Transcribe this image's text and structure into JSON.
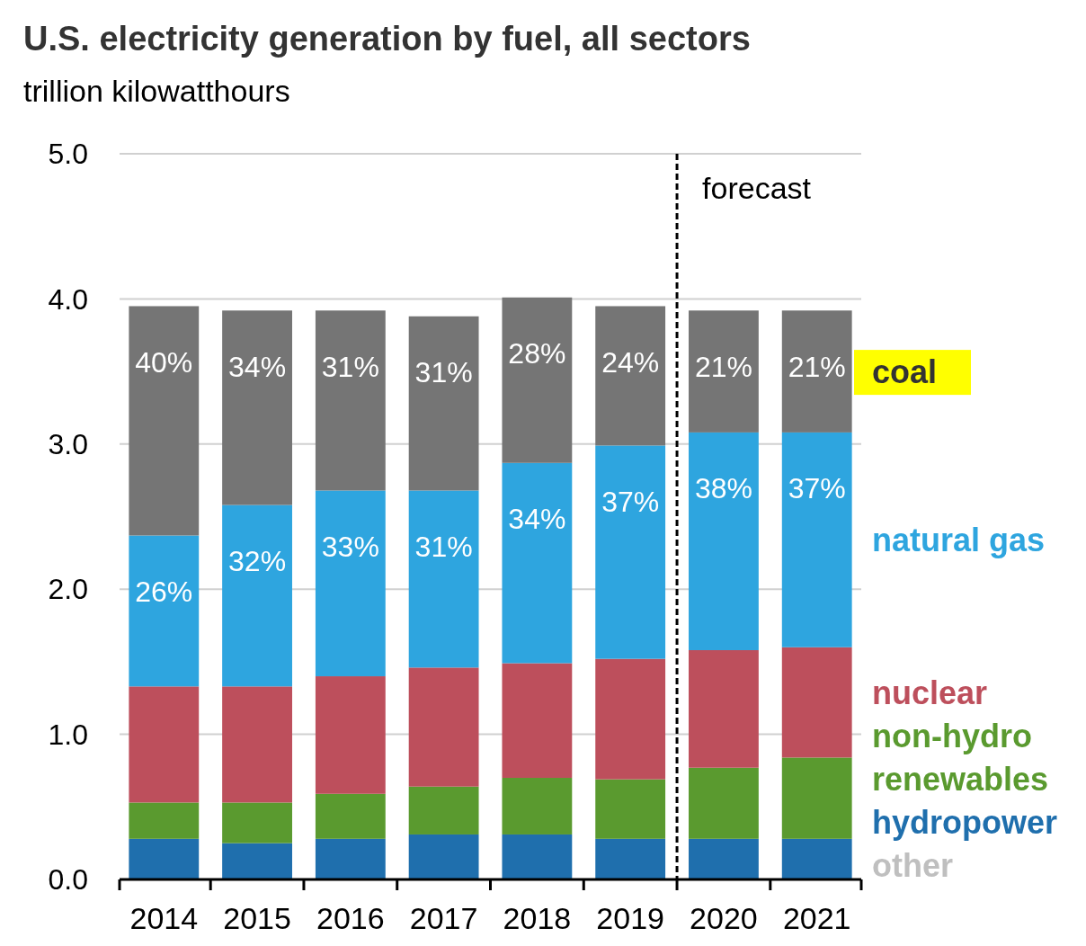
{
  "chart_data": {
    "type": "bar",
    "stacked": true,
    "title": "U.S. electricity generation by fuel, all sectors",
    "subtitle": "trillion kilowatthours",
    "categories": [
      "2014",
      "2015",
      "2016",
      "2017",
      "2018",
      "2019",
      "2020",
      "2021"
    ],
    "ylim": [
      0,
      5
    ],
    "yticks": [
      {
        "value": 0,
        "label": "0.0"
      },
      {
        "value": 1,
        "label": "1.0"
      },
      {
        "value": 2,
        "label": "2.0"
      },
      {
        "value": 3,
        "label": "3.0"
      },
      {
        "value": 4,
        "label": "4.0"
      },
      {
        "value": 5,
        "label": "5.0"
      }
    ],
    "grid": "y",
    "legend": "right",
    "ref_lines": [
      {
        "axis": "x",
        "value": "2020",
        "label": "forecast",
        "line_style": "dashed",
        "color": "#000000"
      }
    ],
    "series": [
      {
        "name": "other",
        "color": "#bfbfbf",
        "values": [
          null,
          null,
          null,
          null,
          null,
          null,
          null,
          null
        ]
      },
      {
        "name": "hydropower",
        "color": "#1f6fad",
        "values": [
          0.28,
          0.25,
          0.28,
          0.31,
          0.31,
          0.28,
          0.28,
          0.28
        ]
      },
      {
        "name": "non-hydro renewables",
        "color": "#5a9a2f",
        "values": [
          0.25,
          0.28,
          0.31,
          0.33,
          0.39,
          0.41,
          0.49,
          0.56
        ]
      },
      {
        "name": "nuclear",
        "color": "#bd4f5c",
        "values": [
          0.8,
          0.8,
          0.81,
          0.82,
          0.79,
          0.83,
          0.81,
          0.76
        ]
      },
      {
        "name": "natural gas",
        "color": "#2ea5df",
        "values": [
          1.04,
          1.25,
          1.28,
          1.22,
          1.38,
          1.47,
          1.5,
          1.48
        ]
      },
      {
        "name": "coal",
        "color": "#757575",
        "values": [
          1.58,
          1.34,
          1.24,
          1.2,
          1.14,
          0.96,
          0.84,
          0.84
        ]
      }
    ],
    "annotations": [
      {
        "text": "26%",
        "x": "2014",
        "y": 2.37
      },
      {
        "text": "32%",
        "x": "2015",
        "y": 2.58
      },
      {
        "text": "33%",
        "x": "2016",
        "y": 2.68
      },
      {
        "text": "31%",
        "x": "2017",
        "y": 2.68
      },
      {
        "text": "34%",
        "x": "2018",
        "y": 2.87
      },
      {
        "text": "37%",
        "x": "2019",
        "y": 2.99
      },
      {
        "text": "38%",
        "x": "2020",
        "y": 3.08
      },
      {
        "text": "37%",
        "x": "2021",
        "y": 3.08
      },
      {
        "text": "40%",
        "x": "2014",
        "y": 3.95
      },
      {
        "text": "34%",
        "x": "2015",
        "y": 3.92
      },
      {
        "text": "31%",
        "x": "2016",
        "y": 3.92
      },
      {
        "text": "31%",
        "x": "2017",
        "y": 3.88
      },
      {
        "text": "28%",
        "x": "2018",
        "y": 4.01
      },
      {
        "text": "24%",
        "x": "2019",
        "y": 3.95
      },
      {
        "text": "21%",
        "x": "2020",
        "y": 3.92
      },
      {
        "text": "21%",
        "x": "2021",
        "y": 3.92
      }
    ]
  }
}
